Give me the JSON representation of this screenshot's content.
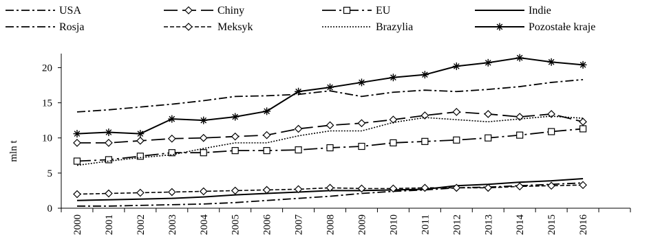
{
  "chart_data": {
    "type": "line",
    "title": "",
    "xlabel": "",
    "ylabel": "mln t",
    "ylim": [
      0,
      22
    ],
    "yticks": [
      0,
      5,
      10,
      15,
      20
    ],
    "grid": false,
    "legend_position": "top",
    "x": [
      "2000",
      "2001",
      "2002",
      "2003",
      "2004",
      "2005",
      "2006",
      "2007",
      "2008",
      "2009",
      "2010",
      "2011",
      "2012",
      "2013",
      "2014",
      "2015",
      "2016"
    ],
    "series": [
      {
        "name": "USA",
        "color": "#000000",
        "line_style": "dash-dot",
        "marker": "none",
        "values": [
          13.7,
          14.0,
          14.4,
          14.8,
          15.3,
          15.9,
          16.0,
          16.2,
          16.7,
          15.9,
          16.5,
          16.8,
          16.6,
          16.9,
          17.3,
          17.9,
          18.3
        ]
      },
      {
        "name": "Chiny",
        "color": "#000000",
        "line_style": "long-dash",
        "marker": "diamond",
        "values": [
          9.3,
          9.3,
          9.6,
          9.9,
          10.0,
          10.2,
          10.4,
          11.3,
          11.8,
          12.1,
          12.6,
          13.2,
          13.7,
          13.4,
          13.0,
          13.4,
          12.3
        ]
      },
      {
        "name": "EU",
        "color": "#000000",
        "line_style": "long-dash-dot",
        "marker": "square",
        "values": [
          6.7,
          6.9,
          7.4,
          7.9,
          7.9,
          8.2,
          8.2,
          8.3,
          8.6,
          8.8,
          9.3,
          9.5,
          9.7,
          10.0,
          10.4,
          10.9,
          11.3
        ]
      },
      {
        "name": "Indie",
        "color": "#000000",
        "line_style": "solid",
        "marker": "none",
        "values": [
          1.1,
          1.2,
          1.3,
          1.4,
          1.6,
          1.9,
          2.1,
          2.3,
          2.5,
          2.5,
          2.6,
          2.7,
          3.2,
          3.4,
          3.7,
          3.9,
          4.2
        ]
      },
      {
        "name": "Rosja",
        "color": "#000000",
        "line_style": "dash-dot",
        "marker": "none",
        "values": [
          0.3,
          0.3,
          0.4,
          0.5,
          0.6,
          0.8,
          1.1,
          1.4,
          1.7,
          2.1,
          2.4,
          2.6,
          2.9,
          3.0,
          3.2,
          3.4,
          3.6
        ]
      },
      {
        "name": "Meksyk",
        "color": "#000000",
        "line_style": "short-dash",
        "marker": "diamond",
        "values": [
          2.0,
          2.1,
          2.2,
          2.3,
          2.4,
          2.5,
          2.6,
          2.7,
          2.9,
          2.8,
          2.8,
          2.9,
          2.9,
          2.9,
          3.1,
          3.2,
          3.3
        ]
      },
      {
        "name": "Brazylia",
        "color": "#000000",
        "line_style": "dotted",
        "marker": "none",
        "values": [
          6.1,
          6.7,
          7.2,
          7.6,
          8.5,
          9.3,
          9.3,
          10.3,
          11.0,
          11.0,
          12.2,
          12.9,
          12.6,
          12.3,
          12.7,
          13.1,
          12.8
        ]
      },
      {
        "name": "Pozostałe kraje",
        "color": "#000000",
        "line_style": "solid",
        "marker": "asterisk",
        "values": [
          10.6,
          10.8,
          10.6,
          12.7,
          12.5,
          13.0,
          13.8,
          16.6,
          17.2,
          17.9,
          18.6,
          19.0,
          20.2,
          20.7,
          21.4,
          20.8,
          20.4
        ]
      }
    ]
  }
}
